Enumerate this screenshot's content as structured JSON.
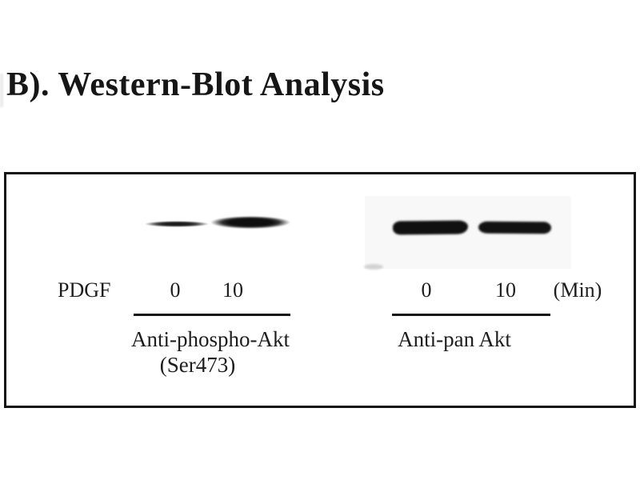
{
  "title": "B). Western-Blot Analysis",
  "blot": {
    "treatment_label": "PDGF",
    "unit_label": "(Min)",
    "panels": [
      {
        "name": "phospho-akt",
        "antibody": "Anti-phospho-Akt",
        "antibody_detail": "(Ser473)",
        "timepoints": [
          "0",
          "10"
        ],
        "bands": [
          {
            "timepoint": "0",
            "intensity": "weak"
          },
          {
            "timepoint": "10",
            "intensity": "strong"
          }
        ]
      },
      {
        "name": "pan-akt",
        "antibody": "Anti-pan Akt",
        "antibody_detail": "",
        "timepoints": [
          "0",
          "10"
        ],
        "bands": [
          {
            "timepoint": "0",
            "intensity": "strong"
          },
          {
            "timepoint": "10",
            "intensity": "strong"
          }
        ]
      }
    ]
  },
  "colors": {
    "text": "#1b1b1b",
    "band": "#111111",
    "box_border": "#141414",
    "scan_background": "#f8f8f8"
  }
}
